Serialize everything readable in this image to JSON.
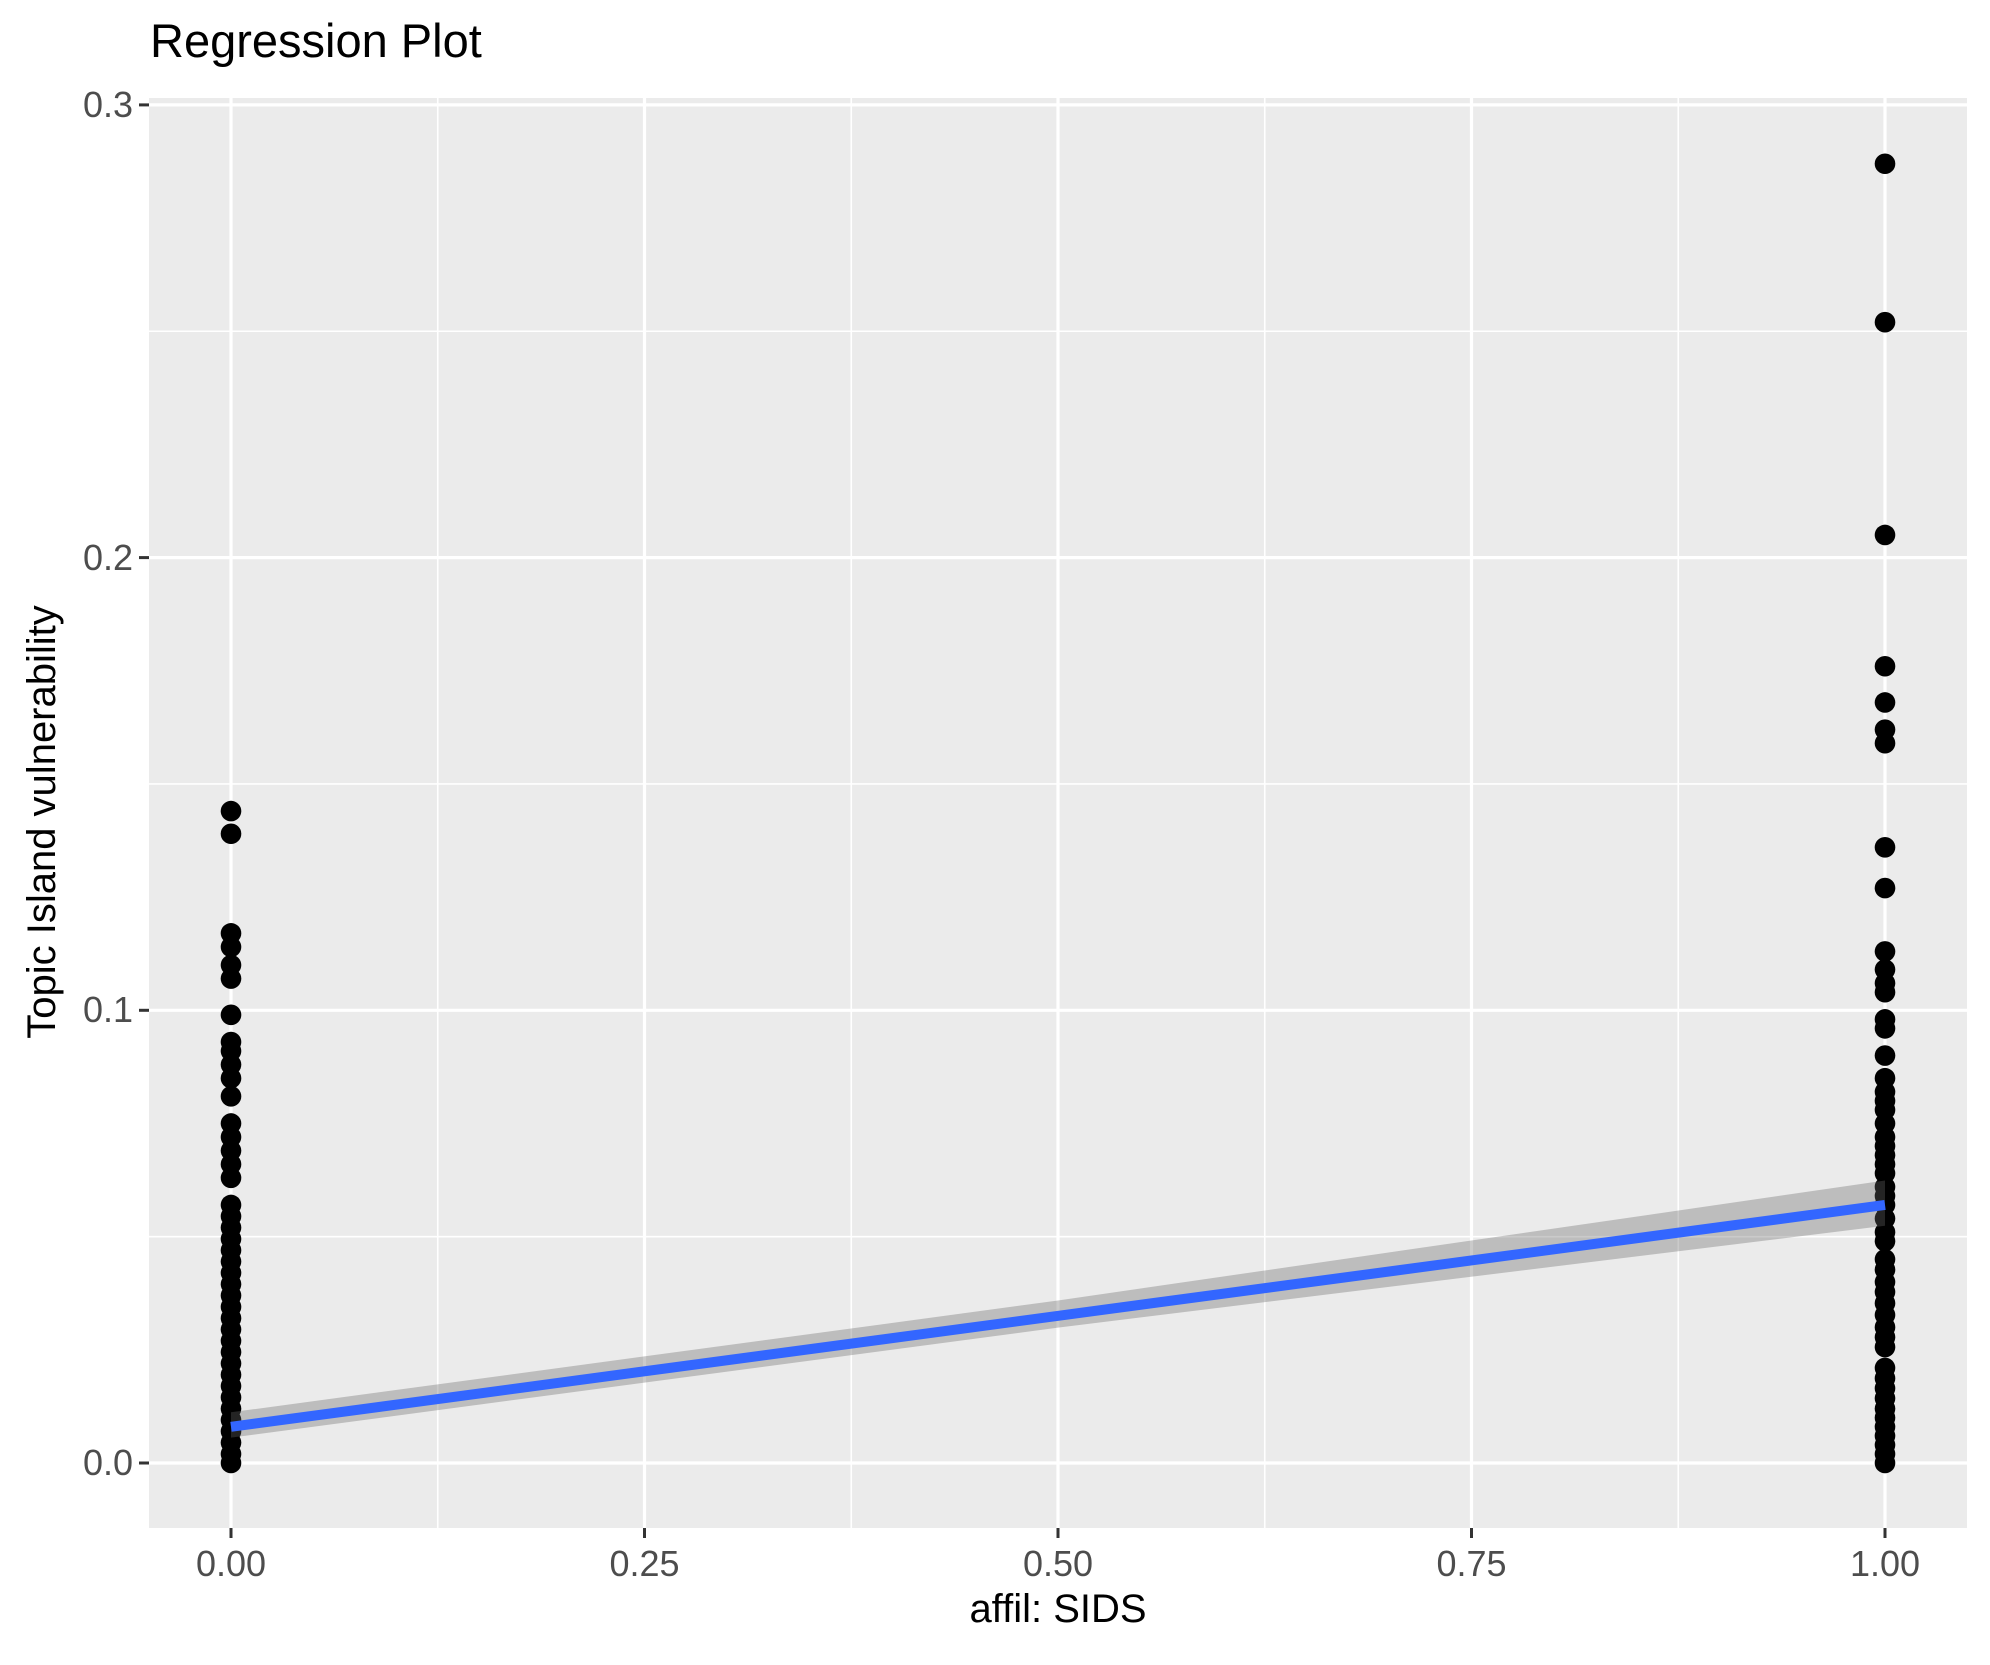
{
  "chart_data": {
    "type": "scatter",
    "title": "Regression Plot",
    "xlabel": "affil: SIDS",
    "ylabel": "Topic Island vulnerability",
    "grid": "on",
    "legend": "none",
    "xlim": [
      -0.05,
      1.05
    ],
    "ylim": [
      -0.0144,
      0.3016
    ],
    "axes": {
      "x_tick_values": [
        0,
        0.25,
        0.5,
        0.75,
        1.0
      ],
      "x_tick_labels": [
        "0.00",
        "0.25",
        "0.50",
        "0.75",
        "1.00"
      ],
      "y_tick_values": [
        0,
        0.1,
        0.2,
        0.3
      ],
      "y_tick_labels": [
        "0.0",
        "0.1",
        "0.2",
        "0.3"
      ],
      "x_minor_values": [
        0.125,
        0.375,
        0.625,
        0.875
      ],
      "y_minor_values": [
        0.05,
        0.15,
        0.25
      ]
    },
    "series": [
      {
        "name": "affil_SIDS_0",
        "x": 0,
        "y": [
          0.144,
          0.139,
          0.117,
          0.114,
          0.11,
          0.107,
          0.099,
          0.093,
          0.091,
          0.088,
          0.085,
          0.081,
          0.075,
          0.072,
          0.069,
          0.066,
          0.063,
          0.057,
          0.0545,
          0.052,
          0.0495,
          0.047,
          0.0445,
          0.042,
          0.0395,
          0.037,
          0.0345,
          0.032,
          0.0295,
          0.027,
          0.0245,
          0.022,
          0.0195,
          0.017,
          0.0145,
          0.012,
          0.0095,
          0.007,
          0.0045,
          0.002,
          0.0
        ]
      },
      {
        "name": "affil_SIDS_1",
        "x": 1,
        "y": [
          0.287,
          0.252,
          0.205,
          0.176,
          0.168,
          0.162,
          0.159,
          0.136,
          0.127,
          0.113,
          0.109,
          0.106,
          0.104,
          0.098,
          0.096,
          0.09,
          0.085,
          0.082,
          0.08,
          0.078,
          0.075,
          0.072,
          0.07,
          0.068,
          0.066,
          0.064,
          0.061,
          0.059,
          0.057,
          0.054,
          0.051,
          0.049,
          0.045,
          0.0427,
          0.04,
          0.0378,
          0.0353,
          0.0327,
          0.03,
          0.0278,
          0.0256,
          0.021,
          0.0187,
          0.0165,
          0.0143,
          0.012,
          0.01,
          0.008,
          0.006,
          0.004,
          0.002,
          0.0
        ]
      }
    ],
    "regression_line": {
      "x": [
        0,
        1
      ],
      "y": [
        0.008,
        0.057
      ]
    },
    "confidence_band": {
      "x": [
        0,
        0.5,
        1
      ],
      "upper": [
        0.0112,
        0.0359,
        0.0624
      ],
      "lower": [
        0.0056,
        0.0299,
        0.0524
      ]
    },
    "colors": {
      "panel_background": "#EBEBEB",
      "grid": "#FFFFFF",
      "point": "#000000",
      "line": "#3366FF",
      "band": "#666666",
      "band_opacity": 0.35,
      "tick_mark": "#333333",
      "tick_text": "#4D4D4D",
      "title_text": "#000000"
    }
  }
}
